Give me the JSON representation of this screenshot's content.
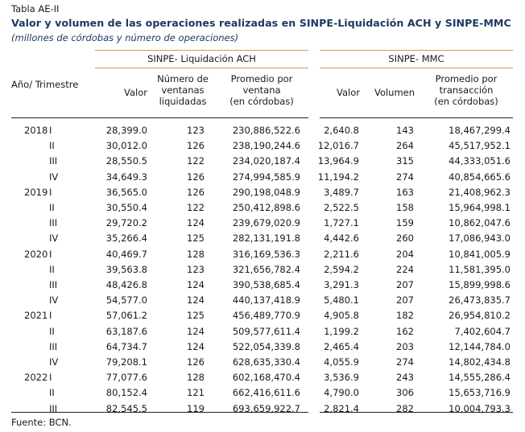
{
  "table_label": "Tabla AE-II",
  "title": "Valor y volumen de las operaciones realizadas en SINPE-Liquidación ACH y SINPE-MMC",
  "subtitle": "(millones de córdobas y número de operaciones)",
  "group_headers": {
    "ach": "SINPE- Liquidación ACH",
    "mmc": "SINPE- MMC"
  },
  "col_headers": {
    "period": "Año/ Trimestre",
    "ach_valor": "Valor",
    "ach_num": [
      "Número de",
      "ventanas",
      "liquidadas"
    ],
    "ach_prom": [
      "Promedio por",
      "ventana",
      "(en córdobas)"
    ],
    "mmc_valor": "Valor",
    "mmc_vol": "Volumen",
    "mmc_prom": [
      "Promedio por",
      "transacción",
      "(en córdobas)"
    ]
  },
  "rows": [
    {
      "year": "2018",
      "q": "I",
      "ach_valor": "28,399.0",
      "ach_num": "123",
      "ach_prom": "230,886,522.6",
      "mmc_valor": "2,640.8",
      "mmc_vol": "143",
      "mmc_prom": "18,467,299.4"
    },
    {
      "year": "",
      "q": "II",
      "ach_valor": "30,012.0",
      "ach_num": "126",
      "ach_prom": "238,190,244.6",
      "mmc_valor": "12,016.7",
      "mmc_vol": "264",
      "mmc_prom": "45,517,952.1"
    },
    {
      "year": "",
      "q": "III",
      "ach_valor": "28,550.5",
      "ach_num": "122",
      "ach_prom": "234,020,187.4",
      "mmc_valor": "13,964.9",
      "mmc_vol": "315",
      "mmc_prom": "44,333,051.6"
    },
    {
      "year": "",
      "q": "IV",
      "ach_valor": "34,649.3",
      "ach_num": "126",
      "ach_prom": "274,994,585.9",
      "mmc_valor": "11,194.2",
      "mmc_vol": "274",
      "mmc_prom": "40,854,665.6"
    },
    {
      "year": "2019",
      "q": "I",
      "ach_valor": "36,565.0",
      "ach_num": "126",
      "ach_prom": "290,198,048.9",
      "mmc_valor": "3,489.7",
      "mmc_vol": "163",
      "mmc_prom": "21,408,962.3"
    },
    {
      "year": "",
      "q": "II",
      "ach_valor": "30,550.4",
      "ach_num": "122",
      "ach_prom": "250,412,898.6",
      "mmc_valor": "2,522.5",
      "mmc_vol": "158",
      "mmc_prom": "15,964,998.1"
    },
    {
      "year": "",
      "q": "III",
      "ach_valor": "29,720.2",
      "ach_num": "124",
      "ach_prom": "239,679,020.9",
      "mmc_valor": "1,727.1",
      "mmc_vol": "159",
      "mmc_prom": "10,862,047.6"
    },
    {
      "year": "",
      "q": "IV",
      "ach_valor": "35,266.4",
      "ach_num": "125",
      "ach_prom": "282,131,191.8",
      "mmc_valor": "4,442.6",
      "mmc_vol": "260",
      "mmc_prom": "17,086,943.0"
    },
    {
      "year": "2020",
      "q": "I",
      "ach_valor": "40,469.7",
      "ach_num": "128",
      "ach_prom": "316,169,536.3",
      "mmc_valor": "2,211.6",
      "mmc_vol": "204",
      "mmc_prom": "10,841,005.9"
    },
    {
      "year": "",
      "q": "II",
      "ach_valor": "39,563.8",
      "ach_num": "123",
      "ach_prom": "321,656,782.4",
      "mmc_valor": "2,594.2",
      "mmc_vol": "224",
      "mmc_prom": "11,581,395.0"
    },
    {
      "year": "",
      "q": "III",
      "ach_valor": "48,426.8",
      "ach_num": "124",
      "ach_prom": "390,538,685.4",
      "mmc_valor": "3,291.3",
      "mmc_vol": "207",
      "mmc_prom": "15,899,998.6"
    },
    {
      "year": "",
      "q": "IV",
      "ach_valor": "54,577.0",
      "ach_num": "124",
      "ach_prom": "440,137,418.9",
      "mmc_valor": "5,480.1",
      "mmc_vol": "207",
      "mmc_prom": "26,473,835.7"
    },
    {
      "year": "2021",
      "q": "I",
      "ach_valor": "57,061.2",
      "ach_num": "125",
      "ach_prom": "456,489,770.9",
      "mmc_valor": "4,905.8",
      "mmc_vol": "182",
      "mmc_prom": "26,954,810.2"
    },
    {
      "year": "",
      "q": "II",
      "ach_valor": "63,187.6",
      "ach_num": "124",
      "ach_prom": "509,577,611.4",
      "mmc_valor": "1,199.2",
      "mmc_vol": "162",
      "mmc_prom": "7,402,604.7"
    },
    {
      "year": "",
      "q": "III",
      "ach_valor": "64,734.7",
      "ach_num": "124",
      "ach_prom": "522,054,339.8",
      "mmc_valor": "2,465.4",
      "mmc_vol": "203",
      "mmc_prom": "12,144,784.0"
    },
    {
      "year": "",
      "q": "IV",
      "ach_valor": "79,208.1",
      "ach_num": "126",
      "ach_prom": "628,635,330.4",
      "mmc_valor": "4,055.9",
      "mmc_vol": "274",
      "mmc_prom": "14,802,434.8"
    },
    {
      "year": "2022",
      "q": "I",
      "ach_valor": "77,077.6",
      "ach_num": "128",
      "ach_prom": "602,168,470.4",
      "mmc_valor": "3,536.9",
      "mmc_vol": "243",
      "mmc_prom": "14,555,286.4"
    },
    {
      "year": "",
      "q": "II",
      "ach_valor": "80,152.4",
      "ach_num": "121",
      "ach_prom": "662,416,611.6",
      "mmc_valor": "4,790.0",
      "mmc_vol": "306",
      "mmc_prom": "15,653,716.9"
    },
    {
      "year": "",
      "q": "III",
      "ach_valor": "82,545.5",
      "ach_num": "119",
      "ach_prom": "693,659,922.7",
      "mmc_valor": "2,821.4",
      "mmc_vol": "282",
      "mmc_prom": "10,004,793.3"
    }
  ],
  "footnote": "Fuente: BCN.",
  "colors": {
    "title": "#1f3864",
    "rule": "#c8a24a"
  }
}
